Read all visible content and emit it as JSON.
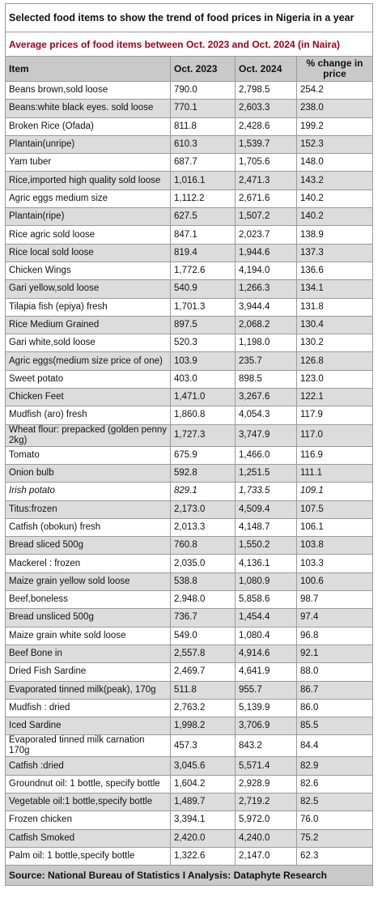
{
  "title": "Selected food items to show the trend of food prices in Nigeria in a year",
  "subtitle": "Average prices of food items between Oct. 2023 and Oct. 2024 (in Naira)",
  "table": {
    "headers": [
      "Item",
      "Oct. 2023",
      "Oct. 2024",
      "% change in price"
    ],
    "rows": [
      [
        "Beans brown,sold loose",
        "790.0",
        "2,798.5",
        "254.2"
      ],
      [
        "Beans:white black eyes. sold loose",
        "770.1",
        "2,603.3",
        "238.0"
      ],
      [
        "Broken Rice (Ofada)",
        "811.8",
        "2,428.6",
        "199.2"
      ],
      [
        "Plantain(unripe)",
        "610.3",
        "1,539.7",
        "152.3"
      ],
      [
        "Yam tuber",
        "687.7",
        "1,705.6",
        "148.0"
      ],
      [
        "Rice,imported high quality sold loose",
        "1,016.1",
        "2,471.3",
        "143.2"
      ],
      [
        "Agric eggs medium size",
        "1,112.2",
        "2,671.6",
        "140.2"
      ],
      [
        "Plantain(ripe)",
        "627.5",
        "1,507.2",
        "140.2"
      ],
      [
        "Rice agric sold loose",
        "847.1",
        "2,023.7",
        "138.9"
      ],
      [
        "Rice local sold loose",
        "819.4",
        "1,944.6",
        "137.3"
      ],
      [
        "Chicken Wings",
        "1,772.6",
        "4,194.0",
        "136.6"
      ],
      [
        "Gari yellow,sold loose",
        "540.9",
        "1,266.3",
        "134.1"
      ],
      [
        "Tilapia fish (epiya) fresh",
        "1,701.3",
        "3,944.4",
        "131.8"
      ],
      [
        "Rice Medium Grained",
        "897.5",
        "2,068.2",
        "130.4"
      ],
      [
        "Gari white,sold loose",
        "520.3",
        "1,198.0",
        "130.2"
      ],
      [
        "Agric eggs(medium size price of one)",
        "103.9",
        "235.7",
        "126.8"
      ],
      [
        "Sweet potato",
        "403.0",
        "898.5",
        "123.0"
      ],
      [
        "Chicken Feet",
        "1,471.0",
        "3,267.6",
        "122.1"
      ],
      [
        "Mudfish (aro) fresh",
        "1,860.8",
        "4,054.3",
        "117.9"
      ],
      [
        "Wheat flour: prepacked (golden penny 2kg)",
        "1,727.3",
        "3,747.9",
        "117.0"
      ],
      [
        "Tomato",
        "675.9",
        "1,466.0",
        "116.9"
      ],
      [
        "Onion bulb",
        "592.8",
        "1,251.5",
        "111.1"
      ],
      [
        "Irish potato",
        "829.1",
        "1,733.5",
        "109.1"
      ],
      [
        "Titus:frozen",
        "2,173.0",
        "4,509.4",
        "107.5"
      ],
      [
        "Catfish (obokun) fresh",
        "2,013.3",
        "4,148.7",
        "106.1"
      ],
      [
        "Bread sliced 500g",
        "760.8",
        "1,550.2",
        "103.8"
      ],
      [
        "Mackerel : frozen",
        "2,035.0",
        "4,136.1",
        "103.3"
      ],
      [
        "Maize grain yellow sold loose",
        "538.8",
        "1,080.9",
        "100.6"
      ],
      [
        "Beef,boneless",
        "2,948.0",
        "5,858.6",
        "98.7"
      ],
      [
        "Bread unsliced 500g",
        "736.7",
        "1,454.4",
        "97.4"
      ],
      [
        "Maize grain white sold loose",
        "549.0",
        "1,080.4",
        "96.8"
      ],
      [
        "Beef Bone in",
        "2,557.8",
        "4,914.6",
        "92.1"
      ],
      [
        "Dried Fish Sardine",
        "2,469.7",
        "4,641.9",
        "88.0"
      ],
      [
        "Evaporated tinned milk(peak), 170g",
        "511.8",
        "955.7",
        "86.7"
      ],
      [
        "Mudfish : dried",
        "2,763.2",
        "5,139.9",
        "86.0"
      ],
      [
        "Iced Sardine",
        "1,998.2",
        "3,706.9",
        "85.5"
      ],
      [
        "Evaporated tinned milk carnation 170g",
        "457.3",
        "843.2",
        "84.4"
      ],
      [
        "Catfish :dried",
        "3,045.6",
        "5,571.4",
        "82.9"
      ],
      [
        "Groundnut oil: 1 bottle, specify bottle",
        "1,604.2",
        "2,928.9",
        "82.6"
      ],
      [
        "Vegetable oil:1 bottle,specify bottle",
        "1,489.7",
        "2,719.2",
        "82.5"
      ],
      [
        "Frozen chicken",
        "3,394.1",
        "5,972.0",
        "76.0"
      ],
      [
        "Catfish Smoked",
        "2,420.0",
        "4,240.0",
        "75.2"
      ],
      [
        "Palm oil: 1 bottle,specify bottle",
        "1,322.6",
        "2,147.0",
        "62.3"
      ]
    ]
  },
  "source": "Source: National Bureau of Statistics I Analysis: Dataphyte Research"
}
